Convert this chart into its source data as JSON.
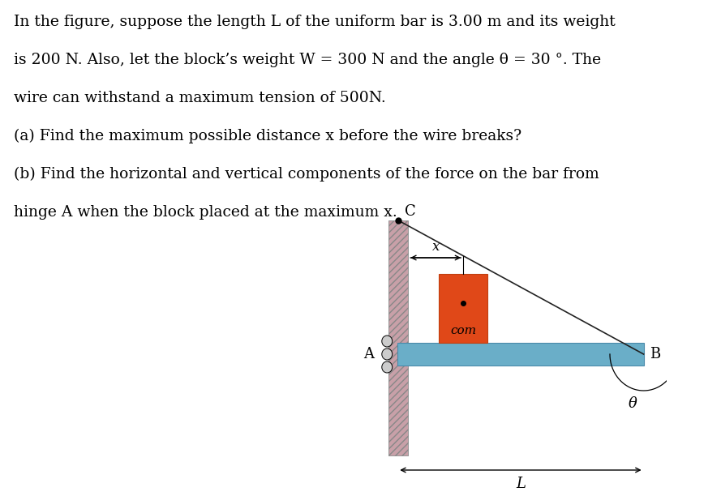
{
  "fig_width": 8.89,
  "fig_height": 6.12,
  "dpi": 100,
  "bg_color": "#ffffff",
  "text_color": "#000000",
  "wall_color": "#c8a0a8",
  "bar_color": "#6aaec8",
  "block_color": "#e04818",
  "wire_color": "#222222",
  "text_line1": "In the figure, suppose the length L of the uniform bar is 3.00 m and its weight",
  "text_line2": "is 200 N. Also, let the block’s weight W = 300 N and the angle θ = 30 °. The",
  "text_line3": "wire can withstand a maximum tension of 500N.",
  "text_line4": "(a) Find the maximum possible distance x before the wire breaks?",
  "text_line5": "(b) Find the horizontal and vertical components of the force on the bar from",
  "text_line6": "hinge A when the block placed at the maximum x.",
  "font_size_text": 13.5,
  "point_C_label": "C",
  "point_A_label": "A",
  "point_B_label": "B",
  "label_L": "L",
  "label_x": "x",
  "label_theta": "θ",
  "label_com": "com"
}
